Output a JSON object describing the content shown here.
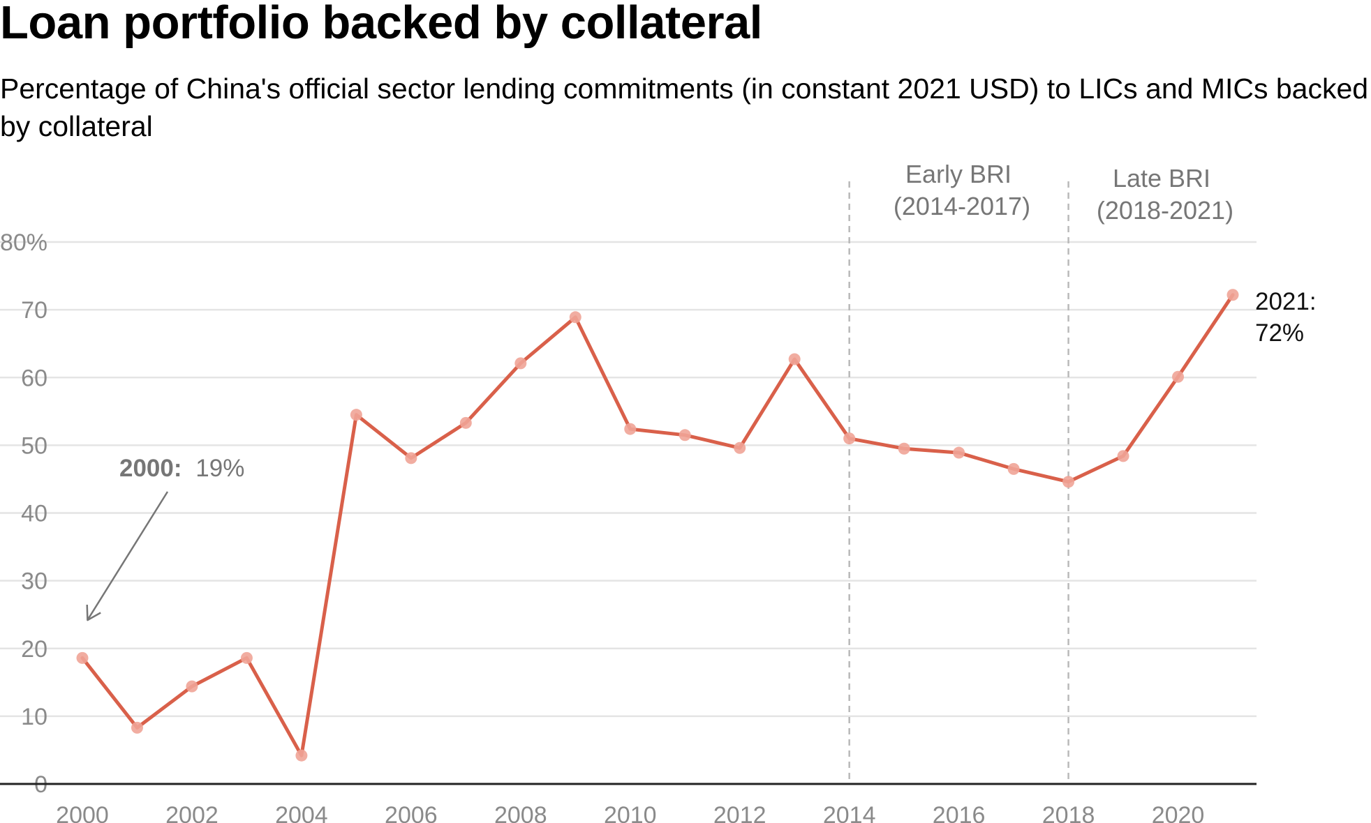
{
  "title": "Loan portfolio backed by collateral",
  "subtitle": "Percentage of China's official sector lending commitments (in constant 2021 USD) to LICs and MICs backed by collateral",
  "colors": {
    "line": "#d9604a",
    "marker": "#f0a497",
    "grid": "#e4e4e4",
    "tick_text": "#8a8a8a",
    "annotation": "#767676",
    "axis": "#222222"
  },
  "chart_data": {
    "type": "line",
    "title": "Loan portfolio backed by collateral",
    "subtitle": "Percentage of China's official sector lending commitments (in constant 2021 USD) to LICs and MICs backed by collateral",
    "xlabel": "",
    "ylabel": "",
    "xlim": [
      2000,
      2021
    ],
    "ylim": [
      0,
      80
    ],
    "x_ticks": [
      2000,
      2002,
      2004,
      2006,
      2008,
      2010,
      2012,
      2014,
      2016,
      2018,
      2020
    ],
    "y_ticks": [
      0,
      10,
      20,
      30,
      40,
      50,
      60,
      70,
      80
    ],
    "y_tick_labels": [
      "0",
      "10",
      "20",
      "30",
      "40",
      "50",
      "60",
      "70",
      "80%"
    ],
    "grid": true,
    "legend": "none",
    "series": [
      {
        "x": [
          2000,
          2001,
          2002,
          2003,
          2004,
          2005,
          2006,
          2007,
          2008,
          2009,
          2010,
          2011,
          2012,
          2013,
          2014,
          2015,
          2016,
          2017,
          2018,
          2019,
          2020,
          2021
        ],
        "values": [
          18.6,
          8.3,
          14.4,
          18.6,
          4.2,
          54.5,
          48.1,
          53.3,
          62.1,
          68.9,
          52.4,
          51.5,
          49.6,
          62.7,
          51.0,
          49.5,
          48.9,
          46.5,
          44.6,
          48.4,
          60.1,
          72.2
        ]
      }
    ],
    "periods": [
      {
        "start": 2014,
        "label_lines": [
          "Early BRI",
          "(2014-2017)"
        ]
      },
      {
        "start": 2018,
        "label_lines": [
          "Late BRI",
          "(2018-2021)"
        ]
      }
    ],
    "annotations": {
      "start": {
        "year_text": "2000:",
        "value_text": "19%"
      },
      "end": {
        "year_text": "2021:",
        "value_text": "72%"
      }
    }
  }
}
